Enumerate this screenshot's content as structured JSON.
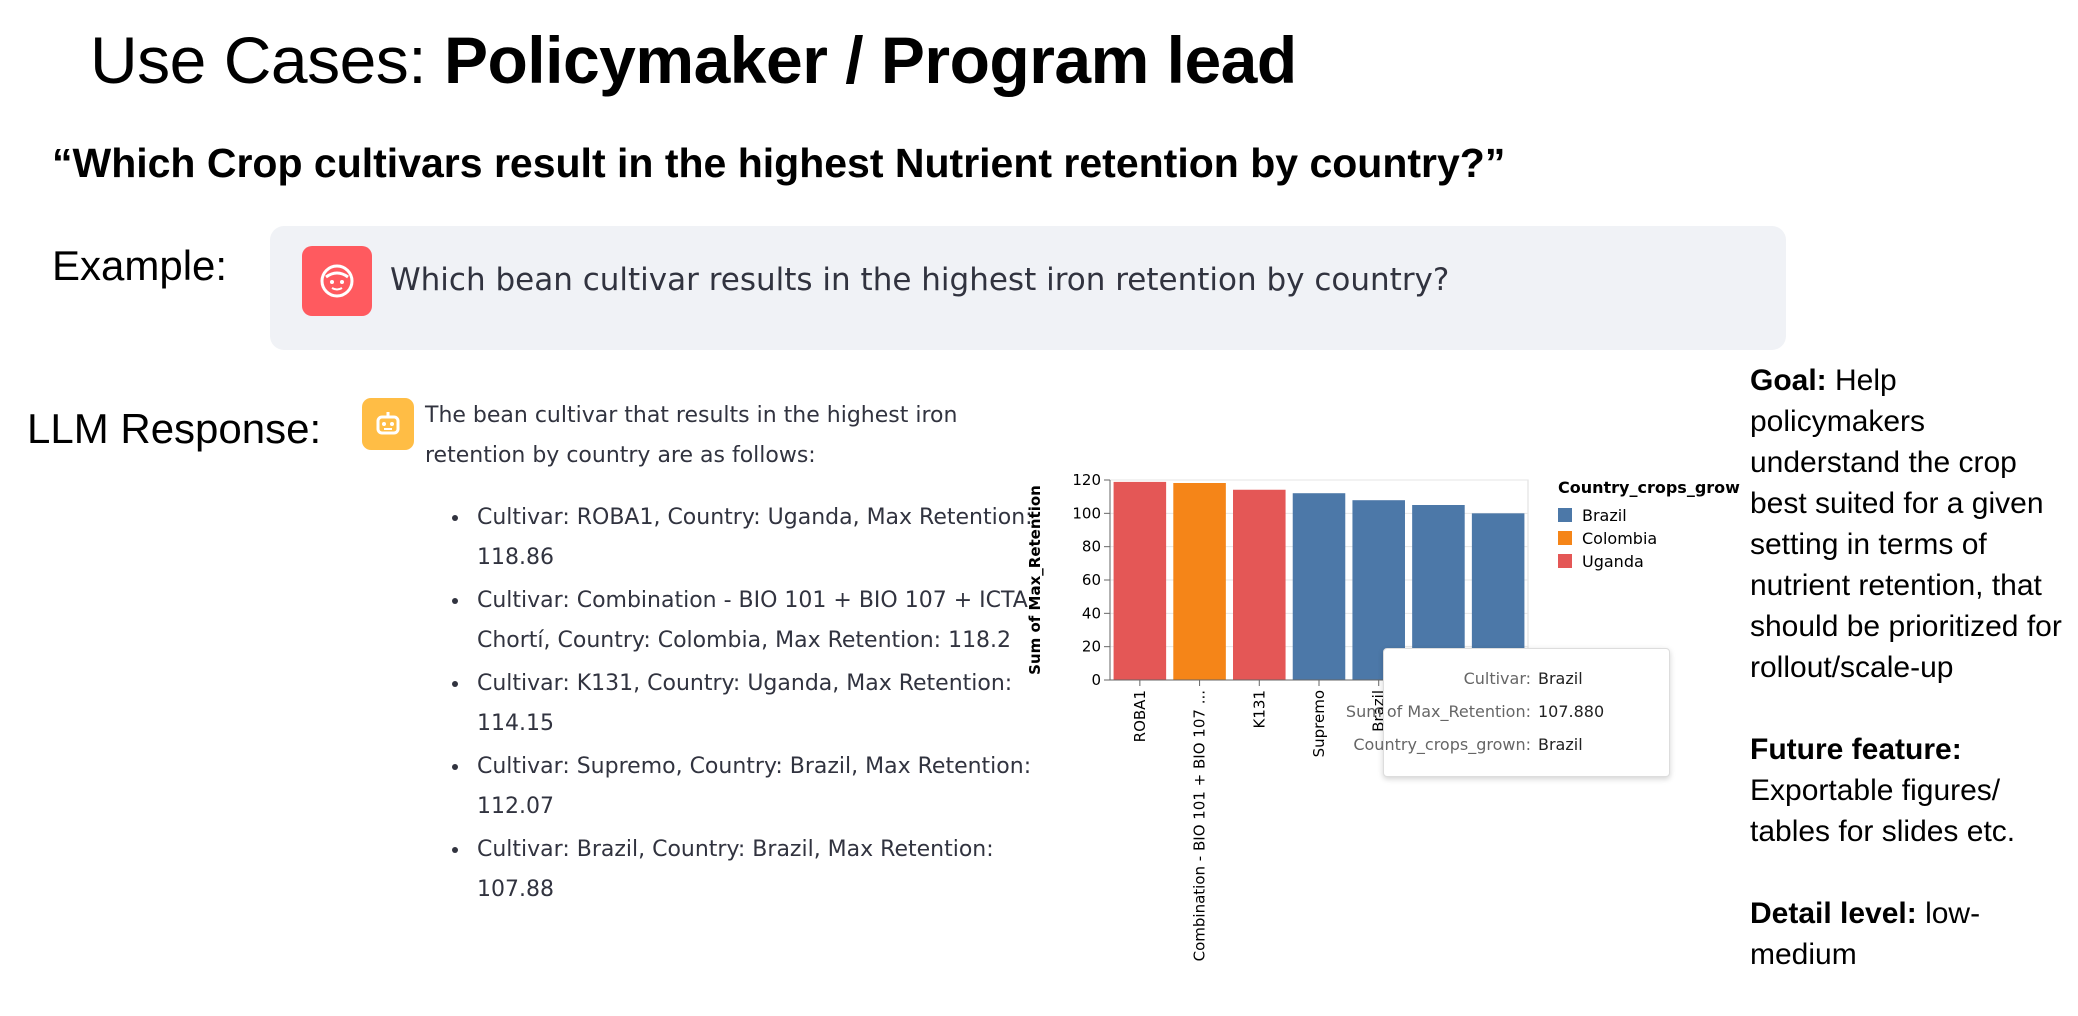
{
  "slide": {
    "title_prefix": "Use Cases: ",
    "title_emphasis": "Policymaker / Program lead",
    "question": "“Which Crop cultivars result in the highest Nutrient retention by country?”",
    "example_label": "Example:",
    "llm_label": "LLM Response:"
  },
  "chat": {
    "user_message": "Which bean cultivar results in the highest iron retention by country?",
    "response_intro": "The bean cultivar that results in the highest iron retention by country are as follows:",
    "response_items": [
      "Cultivar: ROBA1, Country: Uganda, Max Retention: 118.86",
      "Cultivar: Combination - BIO 101 + BIO 107 + ICTA Chortí, Country: Colombia, Max Retention: 118.2",
      "Cultivar: K131, Country: Uganda, Max Retention: 114.15",
      "Cultivar: Supremo, Country: Brazil, Max Retention: 112.07",
      "Cultivar: Brazil, Country: Brazil, Max Retention: 107.88"
    ]
  },
  "chart_data": {
    "type": "bar",
    "ylabel": "Sum of Max_Retention",
    "ylim": [
      0,
      120
    ],
    "yticks": [
      0,
      20,
      40,
      60,
      80,
      100,
      120
    ],
    "categories": [
      "ROBA1",
      "Combination - BIO 101 + BIO 107 ...",
      "K131",
      "Supremo",
      "Brazil",
      "",
      ""
    ],
    "values": [
      118.86,
      118.2,
      114.15,
      112.07,
      107.88,
      105,
      100
    ],
    "bar_groups": [
      "Uganda",
      "Colombia",
      "Uganda",
      "Brazil",
      "Brazil",
      "Brazil",
      "Brazil"
    ],
    "legend_title": "Country_crops_grown",
    "legend": [
      {
        "name": "Brazil",
        "color": "#4c78a8"
      },
      {
        "name": "Colombia",
        "color": "#f58518"
      },
      {
        "name": "Uganda",
        "color": "#e45756"
      }
    ],
    "legend_position": "right",
    "grid": true
  },
  "tooltip": {
    "rows": [
      {
        "key": "Cultivar:",
        "value": "Brazil"
      },
      {
        "key": "Sum of Max_Retention:",
        "value": "107.880"
      },
      {
        "key": "Country_crops_grown:",
        "value": "Brazil"
      }
    ]
  },
  "sidebar": {
    "goal_label": "Goal:",
    "goal_text": " Help policymakers understand the crop best suited for a given setting in terms of nutrient retention, that should be prioritized for rollout/scale-up",
    "future_label": "Future feature:",
    "future_text": " Exportable figures/ tables for slides etc.",
    "detail_label": "Detail level:",
    "detail_text": " low-medium"
  },
  "colors": {
    "user_avatar": "#ff5a5f",
    "bot_avatar": "#ffbd45",
    "chat_bubble": "#f0f2f6"
  }
}
